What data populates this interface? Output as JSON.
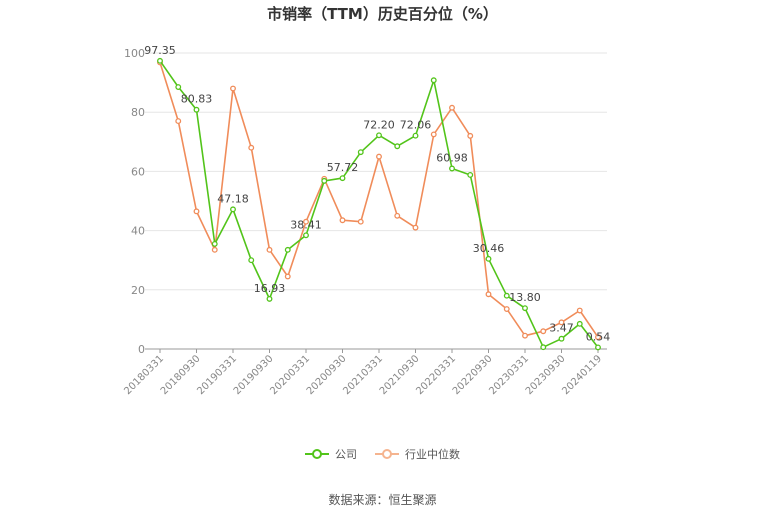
{
  "chart_data": {
    "type": "line",
    "title": "市销率（TTM）历史百分位（%）",
    "ylim": [
      0,
      100
    ],
    "yticks": [
      0,
      20,
      40,
      60,
      80,
      100
    ],
    "x_tick_labels": [
      "20180331",
      "20180930",
      "20190331",
      "20190930",
      "20200331",
      "20200930",
      "20210331",
      "20210930",
      "20220331",
      "20220930",
      "20230331",
      "20230930",
      "20240119"
    ],
    "x": [
      "20180331",
      "20180630",
      "20180930",
      "20181231",
      "20190331",
      "20190630",
      "20190930",
      "20191231",
      "20200331",
      "20200630",
      "20200930",
      "20201231",
      "20210331",
      "20210630",
      "20210930",
      "20211231",
      "20220331",
      "20220630",
      "20220930",
      "20221231",
      "20230331",
      "20230630",
      "20230930",
      "20231231",
      "20240119"
    ],
    "series": [
      {
        "name": "公司",
        "color": "#52c41a",
        "values": [
          97.35,
          88.5,
          80.83,
          35.5,
          47.18,
          30.0,
          16.93,
          33.5,
          38.41,
          56.8,
          57.72,
          66.5,
          72.2,
          68.5,
          72.06,
          90.8,
          60.98,
          58.8,
          30.46,
          18.0,
          13.8,
          0.6,
          3.47,
          8.5,
          0.54
        ]
      },
      {
        "name": "行业中位数",
        "color": "#f08c5a",
        "values": [
          96.8,
          77.0,
          46.5,
          33.5,
          88.0,
          68.0,
          33.5,
          24.5,
          43.0,
          57.5,
          43.5,
          43.0,
          65.0,
          45.0,
          41.0,
          72.5,
          81.5,
          72.0,
          18.5,
          13.5,
          4.5,
          6.0,
          9.0,
          13.0,
          4.0
        ]
      }
    ],
    "data_labels": [
      {
        "i": 0,
        "text": "97.35"
      },
      {
        "i": 2,
        "text": "80.83"
      },
      {
        "i": 4,
        "text": "47.18"
      },
      {
        "i": 6,
        "text": "16.93"
      },
      {
        "i": 8,
        "text": "38.41"
      },
      {
        "i": 10,
        "text": "57.72"
      },
      {
        "i": 12,
        "text": "72.20"
      },
      {
        "i": 14,
        "text": "72.06"
      },
      {
        "i": 16,
        "text": "60.98"
      },
      {
        "i": 18,
        "text": "30.46"
      },
      {
        "i": 20,
        "text": "13.80"
      },
      {
        "i": 22,
        "text": "3.47"
      },
      {
        "i": 24,
        "text": "0.54"
      }
    ],
    "grid": true,
    "legend": "bottom"
  },
  "source": "数据来源：恒生聚源"
}
